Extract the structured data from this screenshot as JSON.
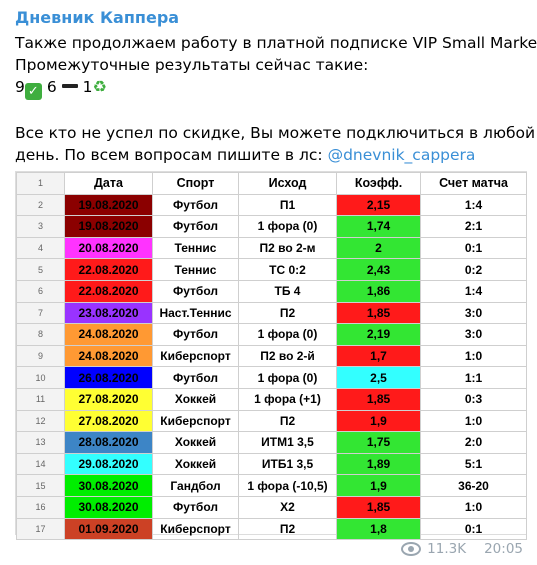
{
  "channel": {
    "name": "Дневник Каппера"
  },
  "post": {
    "line1": "Также продолжаем работу в платной подписке VIP Small Market.",
    "line2": "Промежуточные результаты сейчас такие:",
    "wins": "9",
    "losses": "6",
    "refunds": "1",
    "line4": "Все кто не успел по скидке, Вы можете подключиться в любой",
    "line5_prefix": "день. По всем вопросам пишите в лс: ",
    "mention": "@dnevnik_cappera"
  },
  "table": {
    "header_rownum": "1",
    "headers": [
      "Дата",
      "Спорт",
      "Исход",
      "Коэфф.",
      "Счет матча"
    ],
    "rows": [
      {
        "n": "2",
        "date": "19.08.2020",
        "sport": "Футбол",
        "outcome": "П1",
        "coef": "2,15",
        "score": "1:4",
        "date_color": "dred",
        "coef_color": "red"
      },
      {
        "n": "3",
        "date": "19.08.2020",
        "sport": "Футбол",
        "outcome": "1 фора (0)",
        "coef": "1,74",
        "score": "2:1",
        "date_color": "dred",
        "coef_color": "green"
      },
      {
        "n": "4",
        "date": "20.08.2020",
        "sport": "Теннис",
        "outcome": "П2 во 2-м",
        "coef": "2",
        "score": "0:1",
        "date_color": "magenta",
        "coef_color": "green"
      },
      {
        "n": "5",
        "date": "22.08.2020",
        "sport": "Теннис",
        "outcome": "ТС 0:2",
        "coef": "2,43",
        "score": "0:2",
        "date_color": "red",
        "coef_color": "green"
      },
      {
        "n": "6",
        "date": "22.08.2020",
        "sport": "Футбол",
        "outcome": "ТБ 4",
        "coef": "1,86",
        "score": "1:4",
        "date_color": "red",
        "coef_color": "green"
      },
      {
        "n": "7",
        "date": "23.08.2020",
        "sport": "Наст.Теннис",
        "outcome": "П2",
        "coef": "1,85",
        "score": "3:0",
        "date_color": "purple",
        "coef_color": "red"
      },
      {
        "n": "8",
        "date": "24.08.2020",
        "sport": "Футбол",
        "outcome": "1 фора (0)",
        "coef": "2,19",
        "score": "3:0",
        "date_color": "orange",
        "coef_color": "green"
      },
      {
        "n": "9",
        "date": "24.08.2020",
        "sport": "Киберспорт",
        "outcome": "П2 во 2-й",
        "coef": "1,7",
        "score": "1:0",
        "date_color": "orange",
        "coef_color": "red"
      },
      {
        "n": "10",
        "date": "26.08.2020",
        "sport": "Футбол",
        "outcome": "1 фора (0)",
        "coef": "2,5",
        "score": "1:1",
        "date_color": "blue",
        "coef_color": "cyan"
      },
      {
        "n": "11",
        "date": "27.08.2020",
        "sport": "Хоккей",
        "outcome": "1 фора (+1)",
        "coef": "1,85",
        "score": "0:3",
        "date_color": "yellow",
        "coef_color": "red"
      },
      {
        "n": "12",
        "date": "27.08.2020",
        "sport": "Киберспорт",
        "outcome": "П2",
        "coef": "1,9",
        "score": "1:0",
        "date_color": "yellow",
        "coef_color": "red"
      },
      {
        "n": "13",
        "date": "28.08.2020",
        "sport": "Хоккей",
        "outcome": "ИТМ1 3,5",
        "coef": "1,75",
        "score": "2:0",
        "date_color": "steel",
        "coef_color": "green"
      },
      {
        "n": "14",
        "date": "29.08.2020",
        "sport": "Хоккей",
        "outcome": "ИТБ1 3,5",
        "coef": "1,89",
        "score": "5:1",
        "date_color": "cyan",
        "coef_color": "green"
      },
      {
        "n": "15",
        "date": "30.08.2020",
        "sport": "Гандбол",
        "outcome": "1 фора (-10,5)",
        "coef": "1,9",
        "score": "36-20",
        "date_color": "lime",
        "coef_color": "green"
      },
      {
        "n": "16",
        "date": "30.08.2020",
        "sport": "Футбол",
        "outcome": "Х2",
        "coef": "1,85",
        "score": "1:0",
        "date_color": "lime",
        "coef_color": "red"
      },
      {
        "n": "17",
        "date": "01.09.2020",
        "sport": "Киберспорт",
        "outcome": "П2",
        "coef": "1,8",
        "score": "0:1",
        "date_color": "brick",
        "coef_color": "green"
      }
    ]
  },
  "footer": {
    "views": "11.3K",
    "time": "20:05",
    "icon": "eye-icon"
  }
}
